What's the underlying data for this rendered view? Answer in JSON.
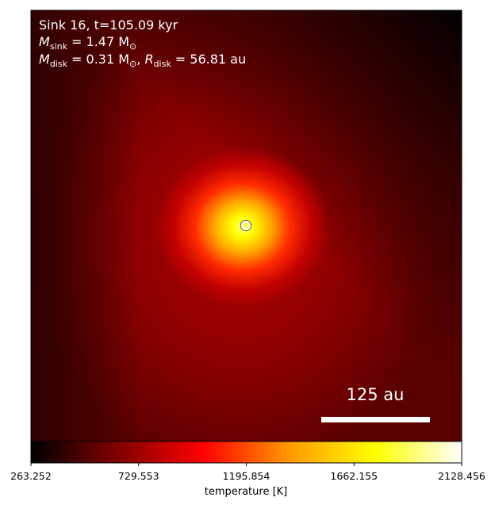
{
  "chart_data": {
    "type": "heatmap",
    "colormap": "hot",
    "annotations": {
      "line1": "Sink 16, t=105.09 kyr",
      "line2_symbol": "M",
      "line2_sub": "sink",
      "line2_rest": " = 1.47 M",
      "line2_sun": "⊙",
      "line3_symbol": "M",
      "line3_sub": "disk",
      "line3_mid": " = 0.31 M",
      "line3_sun": "⊙",
      "line3_sep": ", ",
      "line3_symbol2": "R",
      "line3_sub2": "disk",
      "line3_rest": " = 56.81 au"
    },
    "scale_bar": {
      "label": "125 au",
      "length_au": 125
    },
    "sink_marker": {
      "style": "white ring",
      "color": "#ffffff"
    },
    "colorbar": {
      "label": "temperature [K]",
      "min": 263.252,
      "max": 2128.456,
      "ticks": [
        "263.252",
        "729.553",
        "1195.854",
        "1662.155",
        "2128.456"
      ],
      "colors": [
        "#000000",
        "#800000",
        "#ff0000",
        "#ff9900",
        "#ffff00",
        "#ffffff"
      ]
    }
  }
}
